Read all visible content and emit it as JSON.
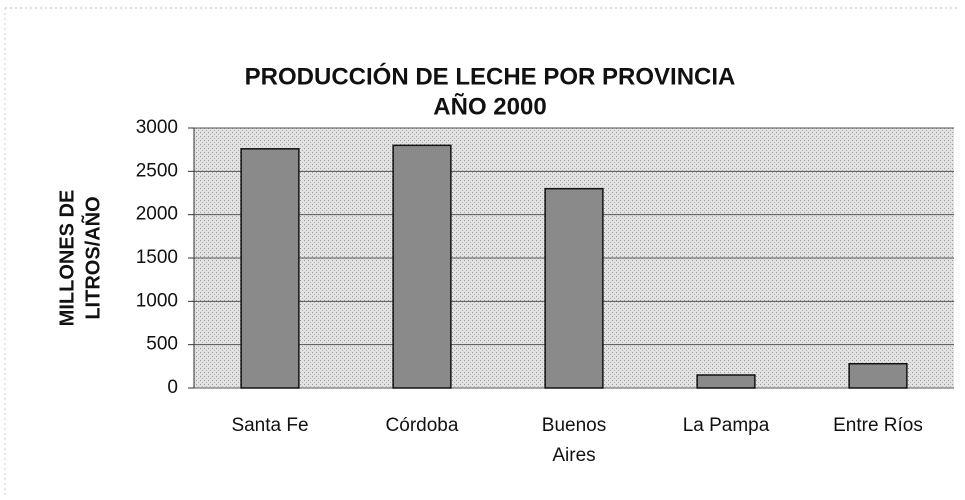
{
  "chart_data": {
    "type": "bar",
    "title": "PRODUCCIÓN DE LECHE POR PROVINCIA",
    "subtitle": "AÑO 2000",
    "y_label": [
      "MILLONES DE",
      "LITROS/AÑO"
    ],
    "categories": [
      "Santa Fe",
      "Córdoba",
      "Buenos Aires",
      "La Pampa",
      "Entre Ríos"
    ],
    "values": [
      2760,
      2800,
      2300,
      150,
      280
    ],
    "color": "#8a8a8a",
    "ylim": [
      0,
      3000
    ],
    "yticks": [
      0,
      500,
      1000,
      1500,
      2000,
      2500,
      3000
    ],
    "grid": true
  }
}
